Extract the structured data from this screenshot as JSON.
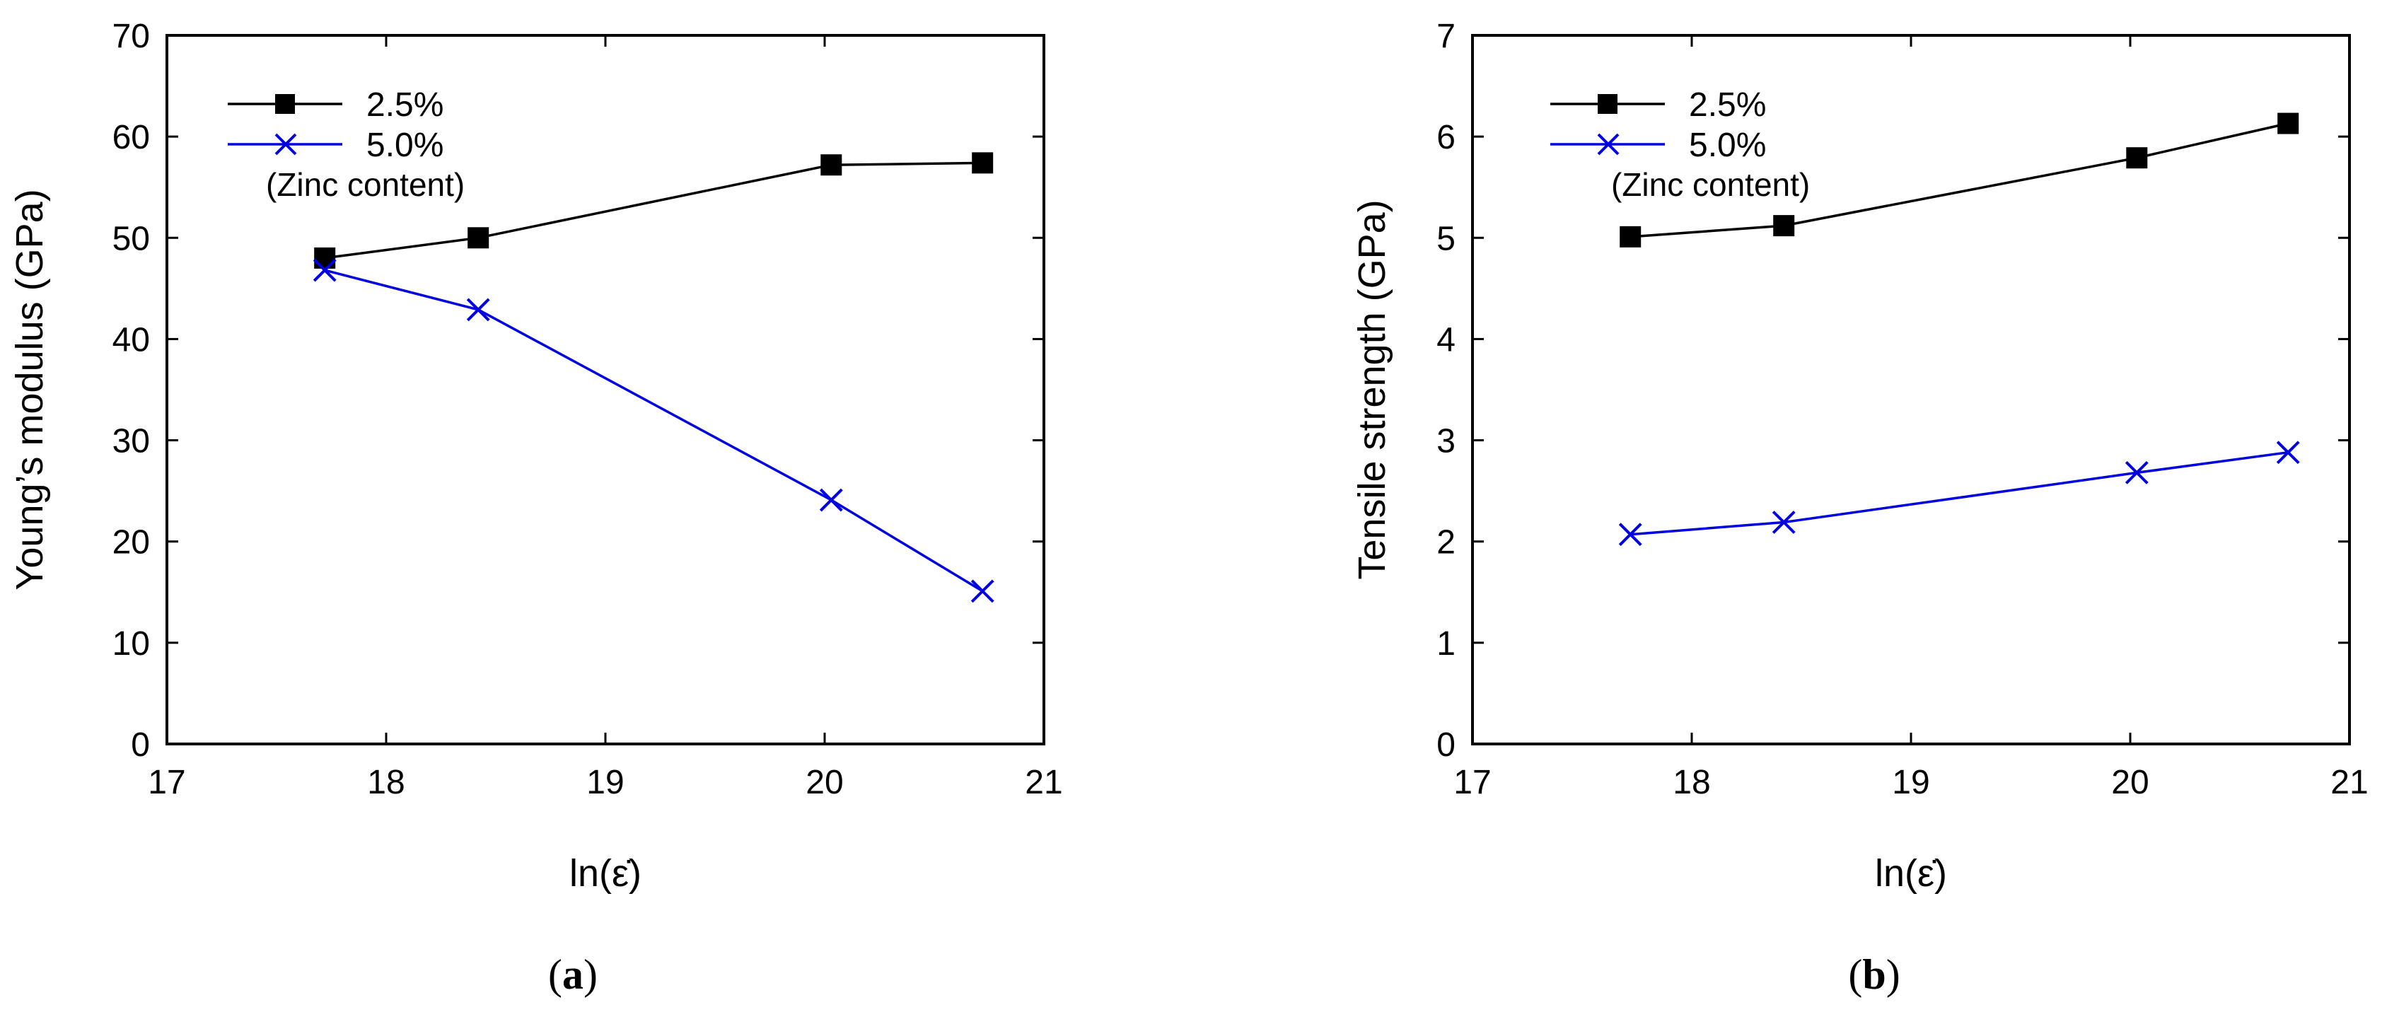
{
  "chart_data": [
    {
      "id": "a",
      "type": "line",
      "caption_open": "(",
      "caption_letter": "a",
      "caption_close": ")",
      "title": "",
      "xlabel": "ln(ε̇)",
      "ylabel": "Young’s modulus (GPa)",
      "xlim": [
        17,
        21
      ],
      "ylim": [
        0,
        70
      ],
      "xticks": [
        17,
        18,
        19,
        20,
        21
      ],
      "yticks": [
        0,
        10,
        20,
        30,
        40,
        50,
        60,
        70
      ],
      "legend_note": "(Zinc content)",
      "series": [
        {
          "name": "2.5%",
          "marker": "square",
          "color": "#000000",
          "x": [
            17.72,
            18.42,
            20.03,
            20.72
          ],
          "y": [
            48.0,
            50.0,
            57.2,
            57.4
          ]
        },
        {
          "name": "5.0%",
          "marker": "x",
          "color": "#0000e0",
          "x": [
            17.72,
            18.42,
            20.03,
            20.72
          ],
          "y": [
            46.8,
            42.9,
            24.1,
            15.1
          ]
        }
      ]
    },
    {
      "id": "b",
      "type": "line",
      "caption_open": "(",
      "caption_letter": "b",
      "caption_close": ")",
      "title": "",
      "xlabel": "ln(ε̇)",
      "ylabel": "Tensile strength (GPa)",
      "xlim": [
        17,
        21
      ],
      "ylim": [
        0,
        7
      ],
      "xticks": [
        17,
        18,
        19,
        20,
        21
      ],
      "yticks": [
        0,
        1,
        2,
        3,
        4,
        5,
        6,
        7
      ],
      "legend_note": "(Zinc content)",
      "series": [
        {
          "name": "2.5%",
          "marker": "square",
          "color": "#000000",
          "x": [
            17.72,
            18.42,
            20.03,
            20.72
          ],
          "y": [
            5.01,
            5.12,
            5.79,
            6.13
          ]
        },
        {
          "name": "5.0%",
          "marker": "x",
          "color": "#0000e0",
          "x": [
            17.72,
            18.42,
            20.03,
            20.72
          ],
          "y": [
            2.07,
            2.19,
            2.68,
            2.88
          ]
        }
      ]
    }
  ]
}
